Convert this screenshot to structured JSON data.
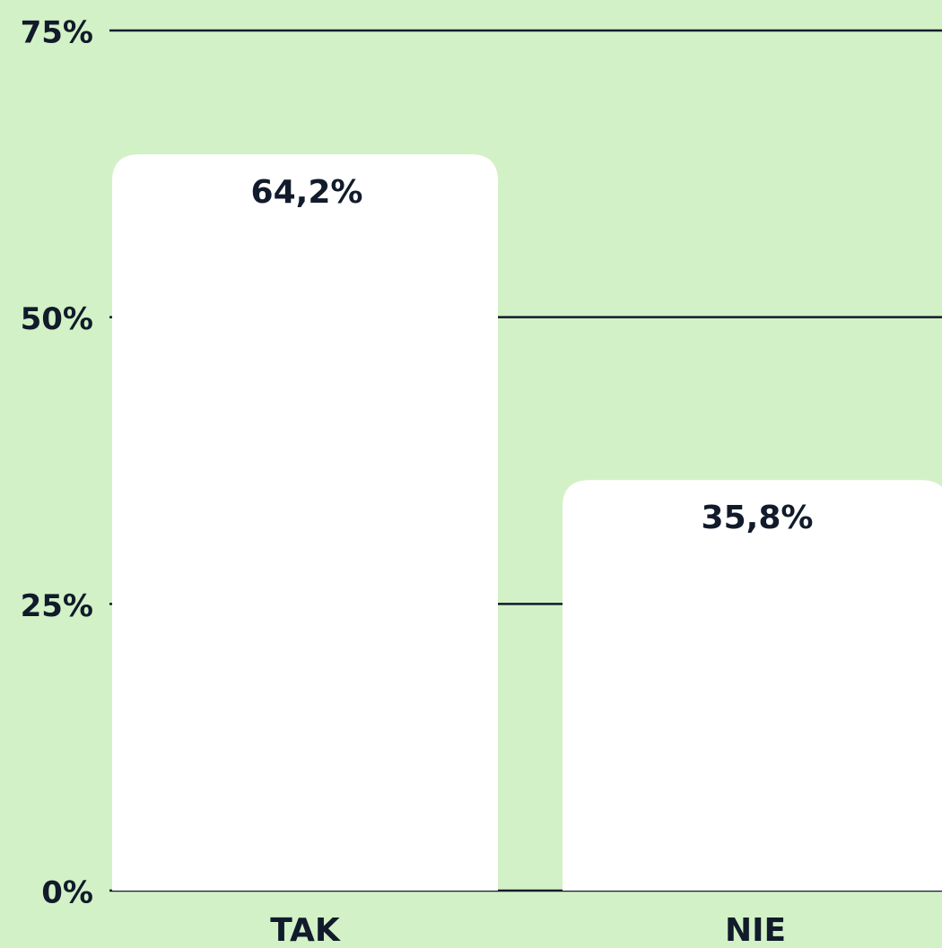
{
  "chart_data": {
    "type": "bar",
    "categories": [
      "TAK",
      "NIE"
    ],
    "values": [
      64.2,
      35.8
    ],
    "value_labels": [
      "64,2%",
      "35,8%"
    ],
    "color": "#ffffff",
    "ylim": [
      0,
      75
    ],
    "yticks": [
      {
        "value": 0,
        "label": "0%"
      },
      {
        "value": 25,
        "label": "25%"
      },
      {
        "value": 50,
        "label": "50%"
      },
      {
        "value": 75,
        "label": "75%"
      }
    ],
    "grid": true
  }
}
